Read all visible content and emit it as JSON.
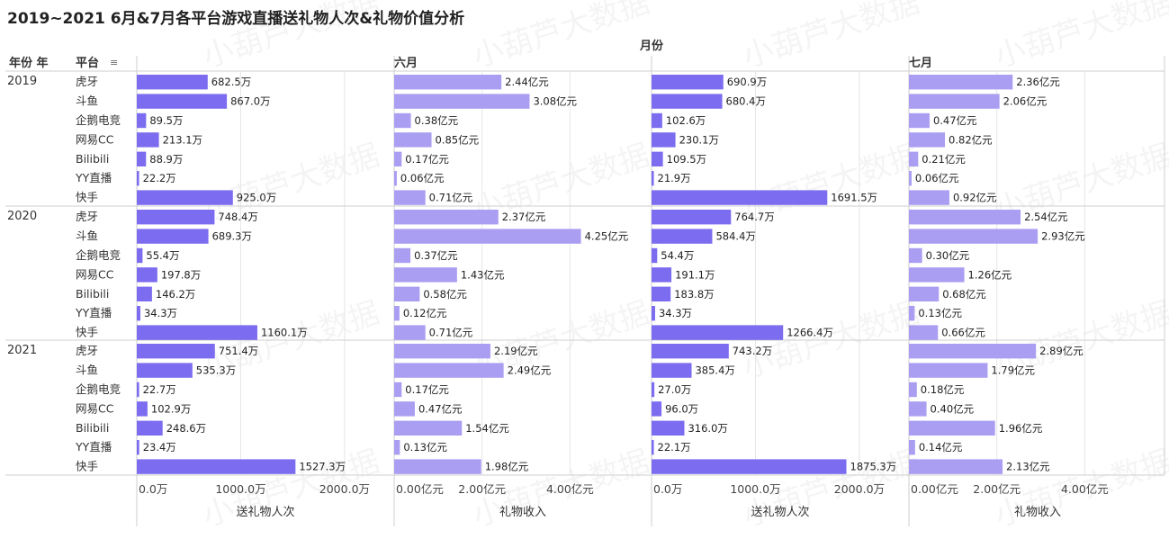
{
  "title": "2019~2021 6月&7月各平台游戏直播送礼物人次&礼物价值分析",
  "watermark": "小葫芦大数据",
  "header": {
    "col_group_label": "月份",
    "row_headers": [
      "年份 年",
      "平台"
    ],
    "months": [
      "六月",
      "七月"
    ]
  },
  "measures": [
    {
      "axis_label": "送礼物人次",
      "unit": "万",
      "ticks": [
        "0.0万",
        "1000.0万",
        "2000.0万"
      ]
    },
    {
      "axis_label": "礼物收入",
      "unit": "亿元",
      "ticks": [
        "0.00亿元",
        "2.00亿元",
        "4.00亿元"
      ]
    }
  ],
  "colors": {
    "persons": "#7b6cf0",
    "income": "#a99ef2",
    "grid": "#e6e6e6",
    "sep": "#cfcfcf"
  },
  "chart_data": {
    "type": "bar",
    "orientation": "horizontal",
    "years": [
      "2019",
      "2020",
      "2021"
    ],
    "platforms": [
      "虎牙",
      "斗鱼",
      "企鹅电竞",
      "网易CC",
      "Bilibili",
      "YY直播",
      "快手"
    ],
    "panels": [
      {
        "month": "六月",
        "measure": "送礼物人次",
        "xlim": [
          0,
          2200
        ],
        "values": {
          "2019": [
            682.5,
            867.0,
            89.5,
            213.1,
            88.9,
            22.2,
            925.0
          ],
          "2020": [
            748.4,
            689.3,
            55.4,
            197.8,
            146.2,
            34.3,
            1160.1
          ],
          "2021": [
            751.4,
            535.3,
            22.7,
            102.9,
            248.6,
            23.4,
            1527.3
          ]
        }
      },
      {
        "month": "六月",
        "measure": "礼物收入",
        "xlim": [
          0,
          5.2
        ],
        "values": {
          "2019": [
            2.44,
            3.08,
            0.38,
            0.85,
            0.17,
            0.06,
            0.71
          ],
          "2020": [
            2.37,
            4.25,
            0.37,
            1.43,
            0.58,
            0.12,
            0.71
          ],
          "2021": [
            2.19,
            2.49,
            0.17,
            0.47,
            1.54,
            0.13,
            1.98
          ]
        }
      },
      {
        "month": "七月",
        "measure": "送礼物人次",
        "xlim": [
          0,
          2200
        ],
        "values": {
          "2019": [
            690.9,
            680.4,
            102.6,
            230.1,
            109.5,
            21.9,
            1691.5
          ],
          "2020": [
            764.7,
            584.4,
            54.4,
            191.1,
            183.8,
            34.3,
            1266.4
          ],
          "2021": [
            743.2,
            385.4,
            27.0,
            96.0,
            316.0,
            22.1,
            1875.3
          ]
        }
      },
      {
        "month": "七月",
        "measure": "礼物收入",
        "xlim": [
          0,
          5.2
        ],
        "values": {
          "2019": [
            2.36,
            2.06,
            0.47,
            0.82,
            0.21,
            0.06,
            0.92
          ],
          "2020": [
            2.54,
            2.93,
            0.3,
            1.26,
            0.68,
            0.13,
            0.66
          ],
          "2021": [
            2.89,
            1.79,
            0.18,
            0.4,
            1.96,
            0.14,
            2.13
          ]
        }
      }
    ],
    "label_format": {
      "送礼物人次": {
        "decimals": 1,
        "suffix": "万"
      },
      "礼物收入": {
        "decimals": 2,
        "suffix": "亿元"
      }
    }
  }
}
